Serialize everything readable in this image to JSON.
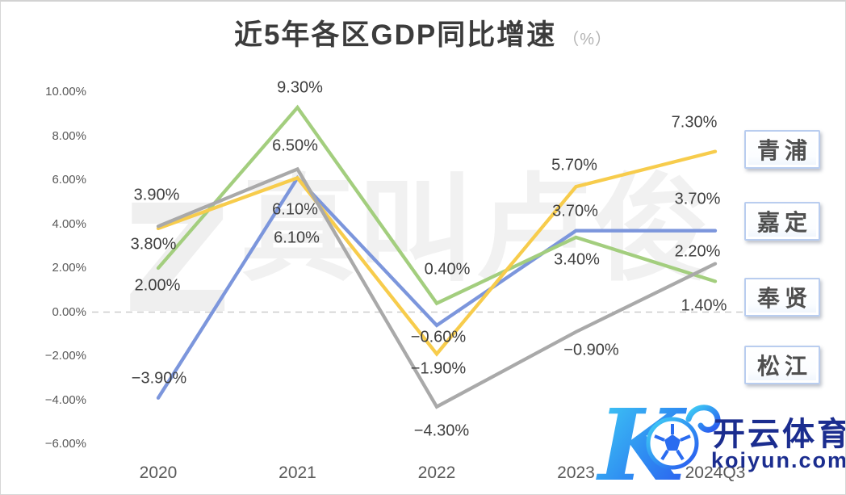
{
  "title": {
    "text": "近5年各区GDP同比增速",
    "unit": "（%）"
  },
  "chart_data": {
    "type": "line",
    "title": "近5年各区GDP同比增速 (%)",
    "xlabel": "",
    "ylabel": "",
    "x": [
      "2020",
      "2021",
      "2022",
      "2023",
      "2024Q3"
    ],
    "ylim": [
      -6,
      10
    ],
    "grid": "zero-dashed-line-only",
    "legend_position": "right",
    "y_ticks": [
      {
        "value": 10,
        "label": "10.00%"
      },
      {
        "value": 8,
        "label": "8.00%"
      },
      {
        "value": 6,
        "label": "6.00%"
      },
      {
        "value": 4,
        "label": "4.00%"
      },
      {
        "value": 2,
        "label": "2.00%"
      },
      {
        "value": 0,
        "label": "0.00%"
      },
      {
        "value": -2,
        "label": "−2.00%"
      },
      {
        "value": -4,
        "label": "−4.00%"
      },
      {
        "value": -6,
        "label": "−6.00%"
      }
    ],
    "series": [
      {
        "name": "青浦",
        "color": "#F7CC4C",
        "values": [
          3.8,
          6.1,
          -1.9,
          5.7,
          7.3
        ],
        "point_labels": [
          "3.80%",
          "6.10%",
          "−1.90%",
          "5.70%",
          "7.30%"
        ],
        "label_offsets": [
          [
            -6,
            20
          ],
          [
            -3,
            40
          ],
          [
            2,
            19
          ],
          [
            -2,
            -26
          ],
          [
            -26,
            -36
          ]
        ]
      },
      {
        "name": "嘉定",
        "color": "#7C96DC",
        "values": [
          -3.9,
          6.1,
          -0.6,
          3.7,
          3.7
        ],
        "point_labels": [
          "−3.90%",
          "6.10%",
          "−0.60%",
          "3.70%",
          "3.70%"
        ],
        "label_offsets": [
          [
            1,
            -24
          ],
          [
            -1,
            75
          ],
          [
            2,
            15
          ],
          [
            -1,
            -24
          ],
          [
            -22,
            -39
          ]
        ]
      },
      {
        "name": "奉贤",
        "color": "#A3CE7E",
        "values": [
          2.0,
          9.3,
          0.4,
          3.4,
          1.4
        ],
        "point_labels": [
          "2.00%",
          "9.30%",
          "0.40%",
          "3.40%",
          "1.40%"
        ],
        "label_offsets": [
          [
            -1,
            22
          ],
          [
            3,
            -24
          ],
          [
            13,
            -42
          ],
          [
            1,
            28
          ],
          [
            -14,
            31
          ]
        ]
      },
      {
        "name": "松江",
        "color": "#A9A9A9",
        "values": [
          3.9,
          6.5,
          -4.3,
          -0.9,
          2.2
        ],
        "point_labels": [
          "3.90%",
          "6.50%",
          "−4.30%",
          "−0.90%",
          "2.20%"
        ],
        "label_offsets": [
          [
            -2,
            -38
          ],
          [
            -3,
            -28
          ],
          [
            6,
            30
          ],
          [
            19,
            23
          ],
          [
            -22,
            -15
          ]
        ]
      }
    ]
  },
  "watermark": {
    "monogram": "Z",
    "text": "真叫卢俊"
  },
  "brand": {
    "monogram": "K",
    "name": "开云体育",
    "domain": "koiyun.com"
  }
}
